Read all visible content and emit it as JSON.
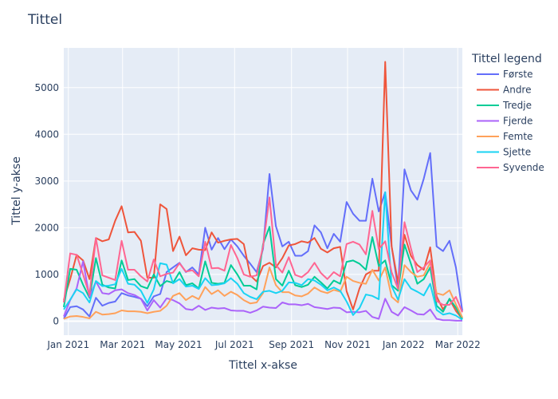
{
  "chart_data": {
    "type": "line",
    "title": "Tittel",
    "xlabel": "Tittel x-akse",
    "ylabel": "Tittel y-akse",
    "legend_title": "Tittel legend",
    "legend_position": "right",
    "grid": true,
    "x": [
      "2020-12-27",
      "2021-01-03",
      "2021-01-10",
      "2021-01-17",
      "2021-01-24",
      "2021-01-31",
      "2021-02-07",
      "2021-02-14",
      "2021-02-21",
      "2021-02-28",
      "2021-03-07",
      "2021-03-14",
      "2021-03-21",
      "2021-03-28",
      "2021-04-04",
      "2021-04-11",
      "2021-04-18",
      "2021-04-25",
      "2021-05-02",
      "2021-05-09",
      "2021-05-16",
      "2021-05-23",
      "2021-05-30",
      "2021-06-06",
      "2021-06-13",
      "2021-06-20",
      "2021-06-27",
      "2021-07-04",
      "2021-07-11",
      "2021-07-18",
      "2021-07-25",
      "2021-08-01",
      "2021-08-08",
      "2021-08-15",
      "2021-08-22",
      "2021-08-29",
      "2021-09-05",
      "2021-09-12",
      "2021-09-19",
      "2021-09-26",
      "2021-10-03",
      "2021-10-10",
      "2021-10-17",
      "2021-10-24",
      "2021-10-31",
      "2021-11-07",
      "2021-11-14",
      "2021-11-21",
      "2021-11-28",
      "2021-12-05",
      "2021-12-12",
      "2021-12-19",
      "2021-12-26",
      "2022-01-02",
      "2022-01-09",
      "2022-01-16",
      "2022-01-23",
      "2022-01-30",
      "2022-02-06",
      "2022-02-13",
      "2022-02-20",
      "2022-02-27",
      "2022-03-06"
    ],
    "x_ticks": [
      {
        "date": "2021-01-01",
        "label": "Jan 2021"
      },
      {
        "date": "2021-03-01",
        "label": "Mar 2021"
      },
      {
        "date": "2021-05-01",
        "label": "May 2021"
      },
      {
        "date": "2021-07-01",
        "label": "Jul 2021"
      },
      {
        "date": "2021-09-01",
        "label": "Sep 2021"
      },
      {
        "date": "2021-11-01",
        "label": "Nov 2021"
      },
      {
        "date": "2022-01-01",
        "label": "Jan 2022"
      },
      {
        "date": "2022-03-01",
        "label": "Mar 2022"
      }
    ],
    "xlim": [
      "2020-12-27",
      "2022-03-06"
    ],
    "ylim": [
      -300,
      5850
    ],
    "y_ticks": [
      0,
      1000,
      2000,
      3000,
      4000,
      5000
    ],
    "series": [
      {
        "name": "Første",
        "color": "#636efa",
        "values": [
          50,
          300,
          320,
          250,
          100,
          500,
          330,
          390,
          420,
          600,
          550,
          520,
          480,
          320,
          530,
          580,
          1050,
          1150,
          1250,
          1050,
          1150,
          1000,
          2000,
          1530,
          1780,
          1540,
          1750,
          1600,
          1400,
          1230,
          1050,
          1550,
          3150,
          2030,
          1600,
          1700,
          1400,
          1400,
          1500,
          2050,
          1900,
          1560,
          1870,
          1700,
          2550,
          2300,
          2150,
          2150,
          3050,
          2350,
          2760,
          1600,
          700,
          3250,
          2800,
          2600,
          3050,
          3600,
          1600,
          1500,
          1720,
          1150,
          220
        ]
      },
      {
        "name": "Andre",
        "color": "#ef553b",
        "values": [
          450,
          900,
          1420,
          1300,
          900,
          1780,
          1710,
          1750,
          2150,
          2460,
          1900,
          1910,
          1720,
          930,
          930,
          2500,
          2400,
          1500,
          1810,
          1410,
          1560,
          1530,
          1520,
          1900,
          1680,
          1720,
          1750,
          1760,
          1650,
          980,
          850,
          1180,
          1250,
          1150,
          1350,
          1620,
          1650,
          1710,
          1680,
          1780,
          1550,
          1470,
          1560,
          1590,
          640,
          250,
          700,
          1000,
          1080,
          1080,
          5550,
          1600,
          820,
          1850,
          1400,
          1200,
          1100,
          1580,
          530,
          250,
          470,
          220,
          50
        ]
      },
      {
        "name": "Tredje",
        "color": "#00cc96",
        "values": [
          300,
          1120,
          1100,
          780,
          500,
          1350,
          780,
          720,
          700,
          1300,
          880,
          900,
          750,
          700,
          1000,
          750,
          860,
          820,
          1050,
          770,
          810,
          700,
          1280,
          820,
          800,
          820,
          1200,
          1000,
          760,
          760,
          680,
          1650,
          2020,
          900,
          760,
          1080,
          770,
          730,
          780,
          950,
          830,
          700,
          870,
          800,
          1270,
          1300,
          1230,
          1100,
          1800,
          1180,
          1300,
          770,
          650,
          1640,
          1230,
          800,
          900,
          1150,
          330,
          200,
          480,
          290,
          50
        ]
      },
      {
        "name": "Fjerde",
        "color": "#ab63fa",
        "values": [
          100,
          450,
          700,
          1280,
          520,
          850,
          600,
          580,
          660,
          680,
          600,
          560,
          480,
          230,
          450,
          290,
          490,
          450,
          380,
          260,
          240,
          330,
          240,
          290,
          270,
          280,
          230,
          220,
          220,
          180,
          230,
          310,
          290,
          280,
          400,
          360,
          360,
          340,
          370,
          300,
          280,
          260,
          290,
          280,
          190,
          200,
          190,
          220,
          90,
          50,
          480,
          200,
          120,
          300,
          230,
          150,
          140,
          250,
          50,
          20,
          20,
          10,
          10
        ]
      },
      {
        "name": "Femte",
        "color": "#ffa15a",
        "values": [
          50,
          100,
          110,
          90,
          60,
          200,
          140,
          150,
          170,
          230,
          210,
          210,
          200,
          170,
          200,
          220,
          330,
          540,
          600,
          450,
          540,
          470,
          730,
          580,
          660,
          540,
          630,
          560,
          450,
          380,
          400,
          600,
          1150,
          770,
          620,
          620,
          550,
          530,
          590,
          720,
          640,
          600,
          670,
          630,
          950,
          860,
          820,
          800,
          1100,
          870,
          1150,
          520,
          400,
          1200,
          1050,
          950,
          980,
          1250,
          600,
          560,
          660,
          360,
          80
        ]
      },
      {
        "name": "Sjette",
        "color": "#19d3f3",
        "values": [
          250,
          460,
          680,
          600,
          400,
          860,
          750,
          760,
          790,
          1120,
          800,
          780,
          650,
          390,
          680,
          1240,
          1210,
          810,
          900,
          740,
          760,
          690,
          920,
          770,
          780,
          810,
          920,
          800,
          600,
          520,
          470,
          630,
          650,
          600,
          650,
          830,
          820,
          770,
          900,
          870,
          780,
          660,
          720,
          650,
          420,
          130,
          280,
          570,
          540,
          470,
          2760,
          750,
          460,
          900,
          700,
          630,
          550,
          800,
          240,
          140,
          170,
          120,
          30
        ]
      },
      {
        "name": "Syvende",
        "color": "#ff6692",
        "values": [
          400,
          1450,
          1420,
          1000,
          560,
          1780,
          980,
          930,
          880,
          1720,
          1100,
          1100,
          960,
          850,
          1320,
          960,
          1010,
          1040,
          1240,
          1060,
          1090,
          960,
          1700,
          1130,
          1140,
          1080,
          1630,
          1350,
          1000,
          950,
          980,
          1600,
          2650,
          1200,
          1040,
          1370,
          990,
          940,
          1050,
          1250,
          1030,
          900,
          1050,
          960,
          1650,
          1700,
          1640,
          1430,
          2360,
          1540,
          1710,
          1050,
          690,
          2120,
          1560,
          1050,
          1150,
          1300,
          430,
          350,
          350,
          520,
          190
        ]
      }
    ]
  }
}
